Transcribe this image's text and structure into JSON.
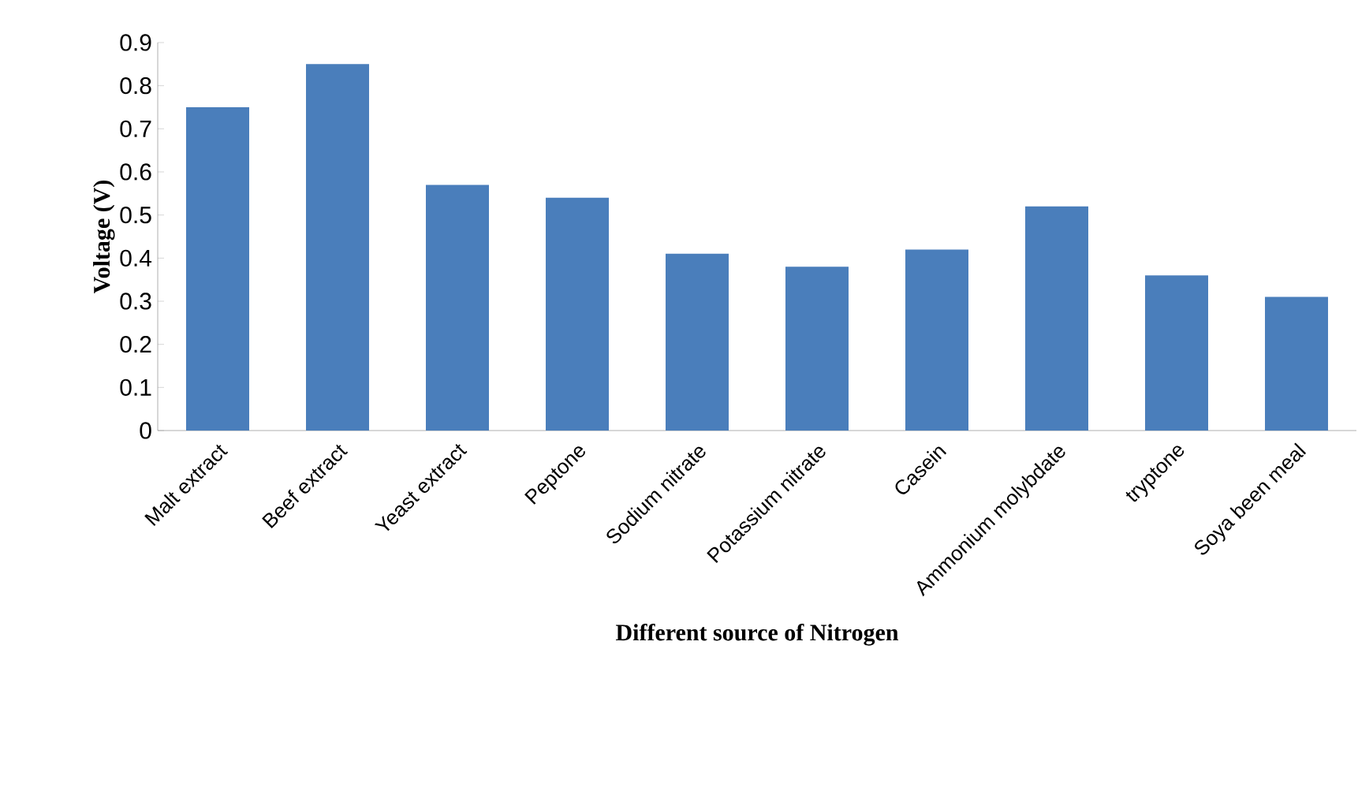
{
  "chart_data": {
    "type": "bar",
    "xlabel": "Different source of Nitrogen",
    "ylabel": "Voltage (V)",
    "categories": [
      "Malt extract",
      "Beef extract",
      "Yeast extract",
      "Peptone",
      "Sodium nitrate",
      "Potassium nitrate",
      "Casein",
      "Ammonium molybdate",
      "tryptone",
      "Soya been meal"
    ],
    "values": [
      0.75,
      0.85,
      0.57,
      0.54,
      0.41,
      0.38,
      0.42,
      0.52,
      0.36,
      0.31
    ],
    "color": "#4a7ebb",
    "ylim": [
      0,
      0.9
    ],
    "yticks": [
      0,
      0.1,
      0.2,
      0.3,
      0.4,
      0.5,
      0.6,
      0.7,
      0.8,
      0.9
    ],
    "grid": false
  }
}
